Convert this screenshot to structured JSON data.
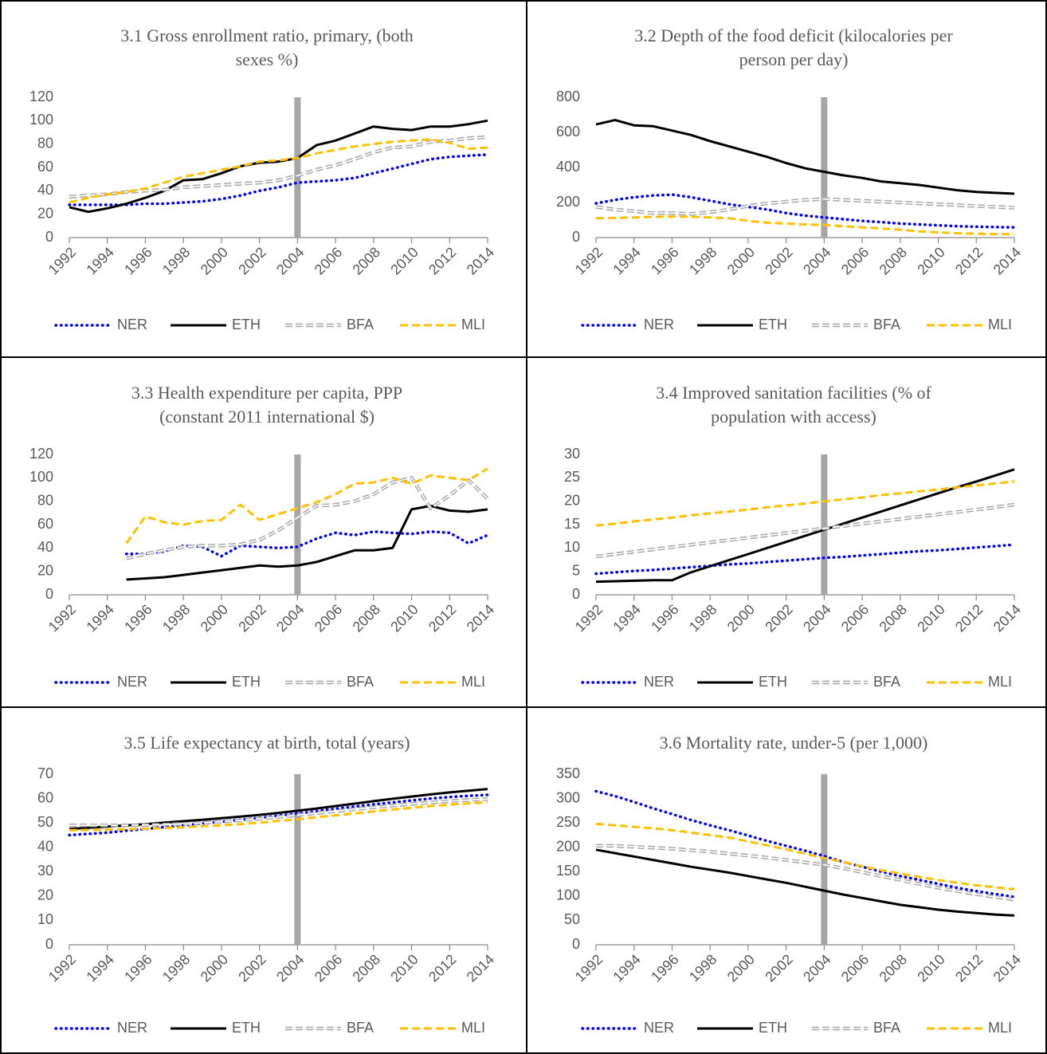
{
  "chart_data": [
    {
      "type": "line",
      "title": [
        "3.1 Gross enrollment ratio, primary, (both",
        "sexes %)"
      ],
      "x": [
        1992,
        1993,
        1994,
        1995,
        1996,
        1997,
        1998,
        1999,
        2000,
        2001,
        2002,
        2003,
        2004,
        2005,
        2006,
        2007,
        2008,
        2009,
        2010,
        2011,
        2012,
        2013,
        2014
      ],
      "xlim": [
        1992,
        2014
      ],
      "xticks": [
        1992,
        1994,
        1996,
        1998,
        2000,
        2002,
        2004,
        2006,
        2008,
        2010,
        2012,
        2014
      ],
      "ylim": [
        0,
        120
      ],
      "yticks": [
        0,
        20,
        40,
        60,
        80,
        100,
        120
      ],
      "vline": 2004,
      "series": [
        {
          "name": "NER",
          "color": "#0000ff",
          "style": "dotted",
          "values": [
            28,
            28,
            28,
            28,
            29,
            29,
            30,
            31,
            33,
            36,
            40,
            43,
            47,
            48,
            49,
            51,
            55,
            59,
            63,
            67,
            69,
            70,
            71
          ]
        },
        {
          "name": "ETH",
          "color": "#000000",
          "style": "solid",
          "values": [
            26,
            22,
            25,
            29,
            34,
            40,
            49,
            50,
            55,
            61,
            64,
            65,
            68,
            79,
            83,
            89,
            95,
            93,
            92,
            95,
            95,
            97,
            100
          ]
        },
        {
          "name": "BFA",
          "color": "#a6a6a6",
          "style": "double-dashed",
          "values": [
            35,
            36,
            37,
            39,
            40,
            41,
            43,
            44,
            45,
            46,
            47,
            49,
            53,
            58,
            62,
            67,
            73,
            77,
            78,
            82,
            83,
            85,
            86
          ]
        },
        {
          "name": "MLI",
          "color": "#ffc000",
          "style": "dashed",
          "values": [
            30,
            34,
            37,
            39,
            42,
            47,
            52,
            55,
            58,
            61,
            65,
            66,
            68,
            72,
            75,
            78,
            80,
            82,
            83,
            84,
            81,
            76,
            77
          ]
        }
      ]
    },
    {
      "type": "line",
      "title": [
        "3.2 Depth of the food deficit (kilocalories per",
        "person per day)"
      ],
      "x": [
        1992,
        1993,
        1994,
        1995,
        1996,
        1997,
        1998,
        1999,
        2000,
        2001,
        2002,
        2003,
        2004,
        2005,
        2006,
        2007,
        2008,
        2009,
        2010,
        2011,
        2012,
        2013,
        2014
      ],
      "xlim": [
        1992,
        2014
      ],
      "xticks": [
        1992,
        1994,
        1996,
        1998,
        2000,
        2002,
        2004,
        2006,
        2008,
        2010,
        2012,
        2014
      ],
      "ylim": [
        0,
        800
      ],
      "yticks": [
        0,
        200,
        400,
        600,
        800
      ],
      "vline": 2004,
      "series": [
        {
          "name": "NER",
          "color": "#0000ff",
          "style": "dotted",
          "values": [
            195,
            215,
            230,
            240,
            245,
            230,
            210,
            190,
            175,
            160,
            140,
            125,
            115,
            105,
            95,
            88,
            80,
            75,
            70,
            65,
            62,
            60,
            58
          ]
        },
        {
          "name": "ETH",
          "color": "#000000",
          "style": "solid",
          "values": [
            645,
            670,
            640,
            635,
            610,
            585,
            550,
            520,
            490,
            460,
            425,
            395,
            375,
            355,
            340,
            320,
            310,
            300,
            285,
            270,
            260,
            255,
            250
          ]
        },
        {
          "name": "BFA",
          "color": "#a6a6a6",
          "style": "double-dashed",
          "values": [
            175,
            160,
            150,
            140,
            140,
            135,
            145,
            160,
            180,
            195,
            205,
            215,
            220,
            215,
            210,
            205,
            200,
            195,
            190,
            185,
            180,
            175,
            170
          ]
        },
        {
          "name": "MLI",
          "color": "#ffc000",
          "style": "dashed",
          "values": [
            110,
            112,
            115,
            118,
            120,
            118,
            115,
            110,
            95,
            85,
            80,
            75,
            72,
            65,
            58,
            52,
            45,
            35,
            30,
            25,
            22,
            20,
            20
          ]
        }
      ]
    },
    {
      "type": "line",
      "title": [
        "3.3 Health expenditure per capita, PPP",
        "(constant 2011 international $)"
      ],
      "x": [
        1992,
        1993,
        1994,
        1995,
        1996,
        1997,
        1998,
        1999,
        2000,
        2001,
        2002,
        2003,
        2004,
        2005,
        2006,
        2007,
        2008,
        2009,
        2010,
        2011,
        2012,
        2013,
        2014
      ],
      "xlim": [
        1992,
        2014
      ],
      "xticks": [
        1992,
        1994,
        1996,
        1998,
        2000,
        2002,
        2004,
        2006,
        2008,
        2010,
        2012,
        2014
      ],
      "ylim": [
        0,
        120
      ],
      "yticks": [
        0,
        20,
        40,
        60,
        80,
        100,
        120
      ],
      "vline": 2004,
      "series": [
        {
          "name": "NER",
          "color": "#0000ff",
          "style": "dotted",
          "values": [
            null,
            null,
            null,
            35,
            35,
            37,
            42,
            41,
            33,
            42,
            41,
            40,
            41,
            48,
            53,
            51,
            54,
            53,
            52,
            54,
            53,
            44,
            51
          ]
        },
        {
          "name": "ETH",
          "color": "#000000",
          "style": "solid",
          "values": [
            null,
            null,
            null,
            13,
            14,
            15,
            17,
            19,
            21,
            23,
            25,
            24,
            25,
            28,
            33,
            38,
            38,
            40,
            73,
            76,
            72,
            71,
            73
          ]
        },
        {
          "name": "BFA",
          "color": "#a6a6a6",
          "style": "double-dashed",
          "values": [
            null,
            null,
            null,
            31,
            35,
            38,
            41,
            42,
            42,
            43,
            47,
            55,
            66,
            76,
            77,
            80,
            86,
            96,
            100,
            74,
            85,
            98,
            82
          ]
        },
        {
          "name": "MLI",
          "color": "#ffc000",
          "style": "dashed",
          "values": [
            null,
            null,
            null,
            44,
            67,
            62,
            60,
            63,
            64,
            77,
            64,
            69,
            74,
            79,
            86,
            95,
            96,
            100,
            95,
            102,
            100,
            98,
            108
          ]
        }
      ]
    },
    {
      "type": "line",
      "title": [
        "3.4 Improved sanitation facilities (% of",
        "population with access)"
      ],
      "x": [
        1992,
        1993,
        1994,
        1995,
        1996,
        1997,
        1998,
        1999,
        2000,
        2001,
        2002,
        2003,
        2004,
        2005,
        2006,
        2007,
        2008,
        2009,
        2010,
        2011,
        2012,
        2013,
        2014
      ],
      "xlim": [
        1992,
        2014
      ],
      "xticks": [
        1992,
        1994,
        1996,
        1998,
        2000,
        2002,
        2004,
        2006,
        2008,
        2010,
        2012,
        2014
      ],
      "ylim": [
        0,
        30
      ],
      "yticks": [
        0,
        5,
        10,
        15,
        20,
        25,
        30
      ],
      "vline": 2004,
      "series": [
        {
          "name": "NER",
          "color": "#0000ff",
          "style": "dotted",
          "values": [
            4.5,
            4.8,
            5.1,
            5.3,
            5.6,
            5.9,
            6.2,
            6.5,
            6.7,
            7.0,
            7.3,
            7.6,
            7.9,
            8.1,
            8.4,
            8.7,
            9.0,
            9.3,
            9.5,
            9.8,
            10.1,
            10.4,
            10.7
          ]
        },
        {
          "name": "ETH",
          "color": "#000000",
          "style": "solid",
          "values": [
            2.8,
            2.9,
            3.0,
            3.1,
            3.1,
            4.8,
            6.1,
            7.4,
            8.7,
            10.0,
            11.3,
            12.6,
            13.9,
            15.2,
            16.5,
            17.8,
            19.1,
            20.4,
            21.7,
            23.0,
            24.2,
            25.5,
            26.8
          ]
        },
        {
          "name": "BFA",
          "color": "#a6a6a6",
          "style": "double-dashed",
          "values": [
            8.2,
            8.7,
            9.2,
            9.7,
            10.2,
            10.7,
            11.2,
            11.7,
            12.2,
            12.7,
            13.2,
            13.7,
            14.2,
            14.7,
            15.2,
            15.7,
            16.2,
            16.7,
            17.2,
            17.7,
            18.2,
            18.7,
            19.3
          ]
        },
        {
          "name": "MLI",
          "color": "#ffc000",
          "style": "dashed",
          "values": [
            14.8,
            15.2,
            15.7,
            16.1,
            16.5,
            17.0,
            17.4,
            17.8,
            18.2,
            18.7,
            19.1,
            19.5,
            20.0,
            20.4,
            20.8,
            21.3,
            21.7,
            22.1,
            22.5,
            23.0,
            23.4,
            23.8,
            24.2
          ]
        }
      ]
    },
    {
      "type": "line",
      "title": [
        "3.5 Life expectancy at birth, total (years)"
      ],
      "x": [
        1992,
        1993,
        1994,
        1995,
        1996,
        1997,
        1998,
        1999,
        2000,
        2001,
        2002,
        2003,
        2004,
        2005,
        2006,
        2007,
        2008,
        2009,
        2010,
        2011,
        2012,
        2013,
        2014
      ],
      "xlim": [
        1992,
        2014
      ],
      "xticks": [
        1992,
        1994,
        1996,
        1998,
        2000,
        2002,
        2004,
        2006,
        2008,
        2010,
        2012,
        2014
      ],
      "ylim": [
        0,
        70
      ],
      "yticks": [
        0,
        10,
        20,
        30,
        40,
        50,
        60,
        70
      ],
      "vline": 2004,
      "series": [
        {
          "name": "NER",
          "color": "#0000ff",
          "style": "dotted",
          "values": [
            45,
            45.5,
            46,
            46.8,
            47.5,
            48.3,
            49,
            49.8,
            50.5,
            51.3,
            52,
            53,
            53.8,
            54.8,
            55.8,
            56.7,
            57.6,
            58.4,
            59.2,
            60,
            60.6,
            61.1,
            61.5
          ]
        },
        {
          "name": "ETH",
          "color": "#000000",
          "style": "solid",
          "values": [
            47.5,
            48,
            48.5,
            49,
            49.5,
            50.1,
            50.7,
            51.3,
            51.9,
            52.6,
            53.3,
            54.1,
            55,
            55.9,
            56.9,
            57.9,
            58.9,
            59.9,
            60.8,
            61.7,
            62.5,
            63.2,
            63.9
          ]
        },
        {
          "name": "BFA",
          "color": "#a6a6a6",
          "style": "double-dashed",
          "values": [
            49,
            49,
            49,
            49,
            49.1,
            49.3,
            49.6,
            50,
            50.5,
            51,
            51.7,
            52.4,
            53.2,
            54,
            54.8,
            55.6,
            56.4,
            57.1,
            57.8,
            58.4,
            58.9,
            59.4,
            59.8
          ]
        },
        {
          "name": "MLI",
          "color": "#ffc000",
          "style": "dashed",
          "values": [
            47,
            47.1,
            47.2,
            47.4,
            47.6,
            47.9,
            48.2,
            48.6,
            49,
            49.5,
            50.1,
            50.8,
            51.5,
            52.3,
            53.1,
            53.9,
            54.7,
            55.5,
            56.2,
            56.9,
            57.5,
            58,
            58.5
          ]
        }
      ]
    },
    {
      "type": "line",
      "title": [
        "3.6 Mortality rate, under-5 (per 1,000)"
      ],
      "x": [
        1992,
        1993,
        1994,
        1995,
        1996,
        1997,
        1998,
        1999,
        2000,
        2001,
        2002,
        2003,
        2004,
        2005,
        2006,
        2007,
        2008,
        2009,
        2010,
        2011,
        2012,
        2013,
        2014
      ],
      "xlim": [
        1992,
        2014
      ],
      "xticks": [
        1992,
        1994,
        1996,
        1998,
        2000,
        2002,
        2004,
        2006,
        2008,
        2010,
        2012,
        2014
      ],
      "ylim": [
        0,
        350
      ],
      "yticks": [
        0,
        50,
        100,
        150,
        200,
        250,
        300,
        350
      ],
      "vline": 2004,
      "series": [
        {
          "name": "NER",
          "color": "#0000ff",
          "style": "dotted",
          "values": [
            315,
            305,
            293,
            280,
            268,
            256,
            245,
            235,
            224,
            213,
            203,
            193,
            182,
            170,
            160,
            150,
            141,
            133,
            125,
            117,
            110,
            104,
            98
          ]
        },
        {
          "name": "ETH",
          "color": "#000000",
          "style": "solid",
          "values": [
            195,
            188,
            181,
            174,
            167,
            160,
            154,
            148,
            141,
            134,
            127,
            119,
            111,
            103,
            96,
            89,
            82,
            77,
            72,
            68,
            65,
            62,
            60
          ]
        },
        {
          "name": "BFA",
          "color": "#a6a6a6",
          "style": "double-dashed",
          "values": [
            203,
            203,
            201,
            199,
            197,
            194,
            191,
            187,
            183,
            179,
            174,
            169,
            164,
            157,
            149,
            141,
            133,
            125,
            117,
            110,
            104,
            98,
            93
          ]
        },
        {
          "name": "MLI",
          "color": "#ffc000",
          "style": "dashed",
          "values": [
            248,
            245,
            242,
            239,
            235,
            230,
            225,
            220,
            212,
            204,
            196,
            187,
            178,
            170,
            161,
            153,
            146,
            139,
            133,
            127,
            122,
            118,
            114
          ]
        }
      ]
    }
  ]
}
